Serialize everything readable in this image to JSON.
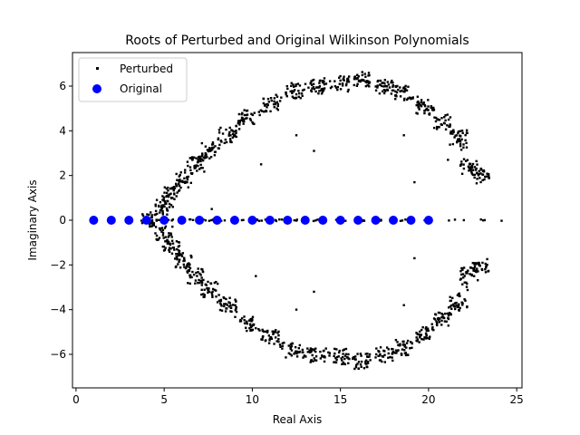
{
  "chart_data": {
    "type": "scatter",
    "title": "Roots of Perturbed and Original Wilkinson Polynomials",
    "xlabel": "Real Axis",
    "ylabel": "Imaginary Axis",
    "xlim": [
      -0.2,
      25.3
    ],
    "ylim": [
      -7.5,
      7.5
    ],
    "x_ticks": [
      0,
      5,
      10,
      15,
      20,
      25
    ],
    "y_ticks": [
      -6,
      -4,
      -2,
      0,
      2,
      4,
      6
    ],
    "grid": false,
    "legend_position": "top-left",
    "series": [
      {
        "name": "Perturbed",
        "color": "#000000",
        "marker": "square-small",
        "points_description": "dense clusters of perturbed roots along a horizontal-opening ring from x≈4 to x≈23.5, plus real-axis roots from x≈4 to x≈24",
        "cluster_centers": [
          [
            4.1,
            0.0
          ],
          [
            5.0,
            0.6
          ],
          [
            5.4,
            1.2
          ],
          [
            6.1,
            1.8
          ],
          [
            6.8,
            2.5
          ],
          [
            7.6,
            3.1
          ],
          [
            8.6,
            3.8
          ],
          [
            9.7,
            4.6
          ],
          [
            11.0,
            5.2
          ],
          [
            12.4,
            5.8
          ],
          [
            13.7,
            6.0
          ],
          [
            15.0,
            6.1
          ],
          [
            16.2,
            6.3
          ],
          [
            17.5,
            6.0
          ],
          [
            18.6,
            5.7
          ],
          [
            19.8,
            5.1
          ],
          [
            20.8,
            4.4
          ],
          [
            21.7,
            3.7
          ],
          [
            22.3,
            2.4
          ],
          [
            23.0,
            2.0
          ],
          [
            5.0,
            -0.6
          ],
          [
            5.4,
            -1.2
          ],
          [
            6.1,
            -1.8
          ],
          [
            6.8,
            -2.5
          ],
          [
            7.6,
            -3.1
          ],
          [
            8.6,
            -3.8
          ],
          [
            9.7,
            -4.6
          ],
          [
            11.0,
            -5.2
          ],
          [
            12.4,
            -5.8
          ],
          [
            13.7,
            -6.0
          ],
          [
            15.0,
            -6.1
          ],
          [
            16.2,
            -6.3
          ],
          [
            17.5,
            -6.0
          ],
          [
            18.6,
            -5.7
          ],
          [
            19.8,
            -5.1
          ],
          [
            20.8,
            -4.4
          ],
          [
            21.7,
            -3.7
          ],
          [
            22.3,
            -2.4
          ],
          [
            23.0,
            -2.0
          ]
        ],
        "real_axis_range": [
          4.0,
          24.2
        ]
      },
      {
        "name": "Original",
        "color": "#0000ff",
        "marker": "circle",
        "x": [
          1,
          2,
          3,
          4,
          5,
          6,
          7,
          8,
          9,
          10,
          11,
          12,
          13,
          14,
          15,
          16,
          17,
          18,
          19,
          20
        ],
        "y": [
          0,
          0,
          0,
          0,
          0,
          0,
          0,
          0,
          0,
          0,
          0,
          0,
          0,
          0,
          0,
          0,
          0,
          0,
          0,
          0
        ]
      }
    ]
  }
}
